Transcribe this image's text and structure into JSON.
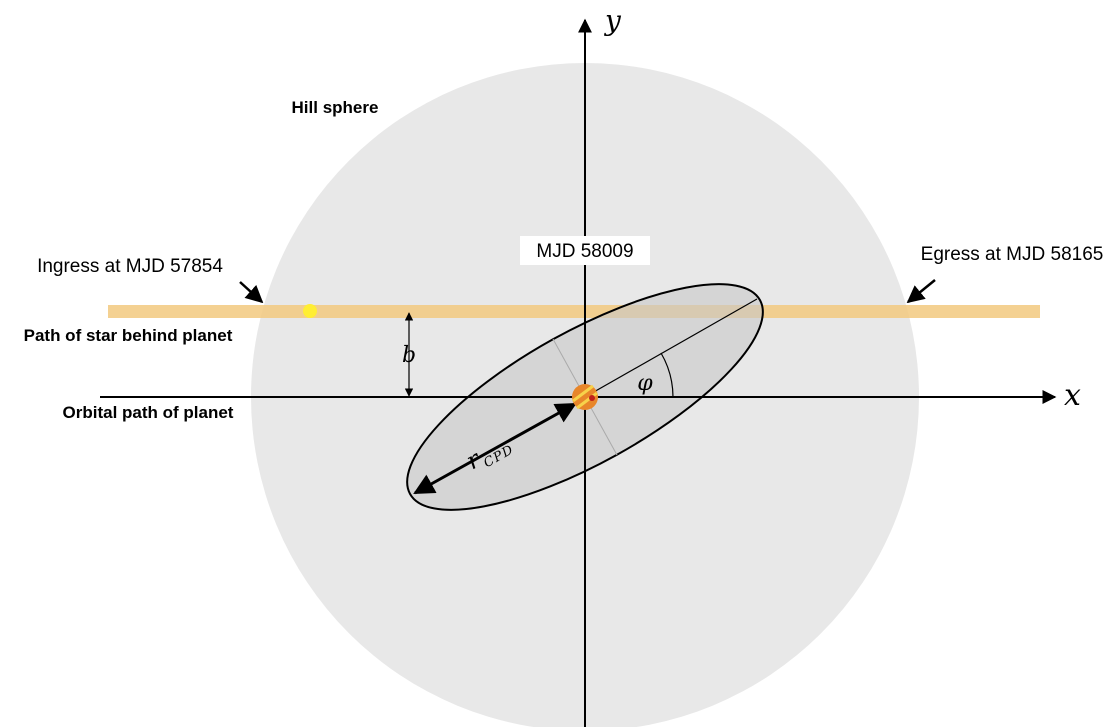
{
  "labels": {
    "hill_sphere": "Hill sphere",
    "mid_epoch": "MJD 58009",
    "ingress": "Ingress at MJD 57854",
    "egress": "Egress at MJD 58165",
    "star_path": "Path of star behind planet",
    "orbital_path": "Orbital path of planet"
  },
  "symbols": {
    "x_axis": "x",
    "y_axis": "y",
    "impact": "b",
    "angle": "φ",
    "radius": "r",
    "radius_sub": "CPD"
  }
}
